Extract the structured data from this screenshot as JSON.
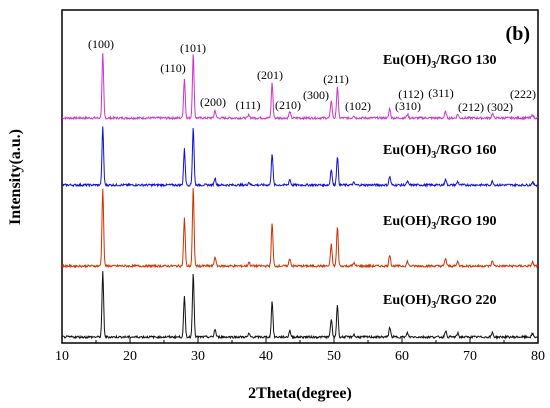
{
  "chart_data": {
    "type": "line",
    "panel_label": "(b)",
    "xlabel": "2Theta(degree)",
    "ylabel": "Intensity(a.u.)",
    "xlim": [
      10,
      80
    ],
    "x_ticks": [
      10,
      20,
      30,
      40,
      50,
      60,
      70,
      80
    ],
    "y_ticks_shown": false,
    "grid": false,
    "legend": "none",
    "peaks": [
      {
        "pos": 16.0,
        "h": 1.0,
        "label": "(100)"
      },
      {
        "pos": 28.0,
        "h": 0.62,
        "label": "(110)"
      },
      {
        "pos": 29.3,
        "h": 1.0,
        "label": "(101)"
      },
      {
        "pos": 32.5,
        "h": 0.12,
        "label": "(200)"
      },
      {
        "pos": 37.5,
        "h": 0.05,
        "label": "(111)"
      },
      {
        "pos": 40.9,
        "h": 0.55,
        "label": "(201)"
      },
      {
        "pos": 43.5,
        "h": 0.1,
        "label": "(210)"
      },
      {
        "pos": 49.6,
        "h": 0.28,
        "label": "(300)"
      },
      {
        "pos": 50.5,
        "h": 0.5,
        "label": "(211)"
      },
      {
        "pos": 52.9,
        "h": 0.04,
        "label": "(102)"
      },
      {
        "pos": 58.2,
        "h": 0.15,
        "label": "(112)"
      },
      {
        "pos": 60.8,
        "h": 0.06,
        "label": "(310)"
      },
      {
        "pos": 66.4,
        "h": 0.1,
        "label": "(311)"
      },
      {
        "pos": 68.2,
        "h": 0.06,
        "label": "(212)"
      },
      {
        "pos": 73.3,
        "h": 0.07,
        "label": "(302)"
      },
      {
        "pos": 79.2,
        "h": 0.05,
        "label": "(222)"
      }
    ],
    "series": [
      {
        "name_main": "Eu(OH)",
        "name_sub": "3",
        "name_rest": "/RGO 130",
        "color": "#cc33cc",
        "scale": 1.0
      },
      {
        "name_main": "Eu(OH)",
        "name_sub": "3",
        "name_rest": "/RGO 160",
        "color": "#1010d0",
        "scale": 1.0
      },
      {
        "name_main": "Eu(OH)",
        "name_sub": "3",
        "name_rest": "/RGO 190",
        "color": "#cc3300",
        "scale": 1.0
      },
      {
        "name_main": "Eu(OH)",
        "name_sub": "3",
        "name_rest": "/RGO 220",
        "color": "#111111",
        "scale": 1.0
      }
    ]
  }
}
